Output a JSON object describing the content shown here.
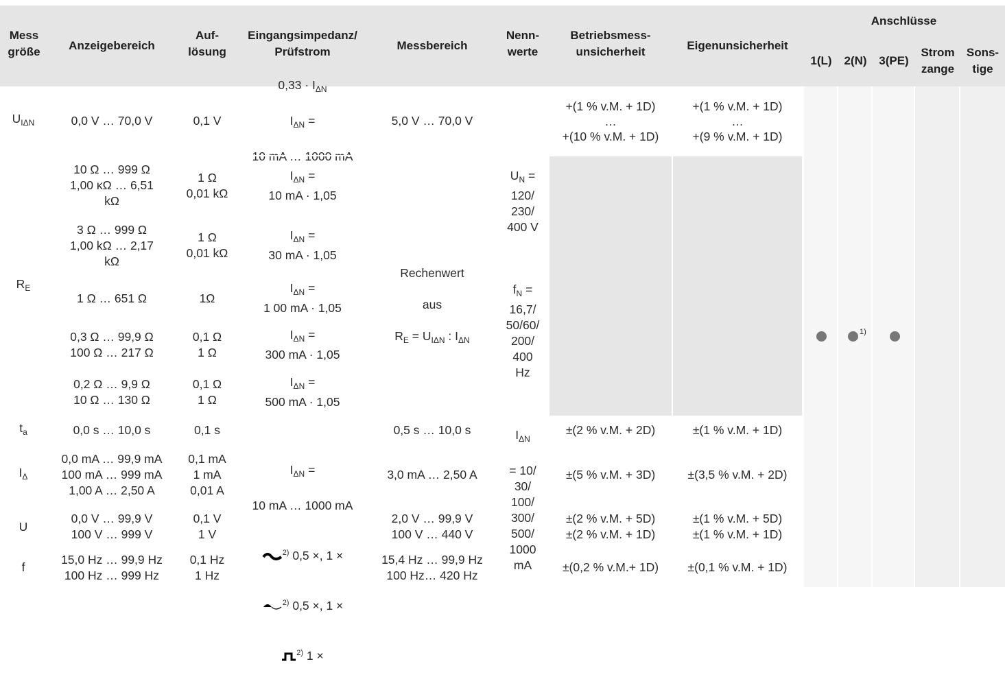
{
  "headers": {
    "messgroesse": "Mess\ngröße",
    "anzeigebereich": "Anzeigebereich",
    "aufloesung": "Auf-\nlösung",
    "eingangsimpedanz": "Eingangsimpedanz/\nPrüfstrom",
    "messbereich": "Messbereich",
    "nennwerte": "Nenn-\nwerte",
    "betriebsmess": "Betriebsmess-\nunsicherheit",
    "eigen": "Eigenunsicherheit",
    "anschluesse": "Anschlüsse",
    "l": "1(L)",
    "n": "2(N)",
    "pe": "3(PE)",
    "strom": "Strom\nzange",
    "sonstige": "Sons-\ntige"
  },
  "sym": {
    "u": "U",
    "i": "I",
    "delta_n": "ΔN",
    "delta": "Δ",
    "r": "R",
    "e": "E",
    "t": "t",
    "a": "a",
    "f": "f",
    "u_plain": "U"
  },
  "rows": {
    "uidn": {
      "anzeige": "0,0 V … 70,0 V",
      "aufl": "0,1 V",
      "imp1": "0,33 · I",
      "imp2": "I",
      "imp2b": " =",
      "imp3": "10 mA … 1000 mA",
      "messbereich": "5,0 V … 70,0 V",
      "betrieb": "+(1 % v.M. + 1D)\n…\n+(10 % v.M. + 1D)",
      "eigen": "+(1 % v.M. + 1D)\n…\n+(9 % v.M. + 1D)"
    },
    "re1": {
      "anzeige": "10 Ω … 999 Ω\n1,00 κΩ … 6,51\nkΩ",
      "aufl": "1 Ω\n0,01 kΩ",
      "imp": "10 mA · 1,05"
    },
    "re2": {
      "anzeige": "3 Ω … 999 Ω\n1,00 kΩ … 2,17\nkΩ",
      "aufl": "1 Ω\n0,01 kΩ",
      "imp": "30 mA · 1,05"
    },
    "re3": {
      "anzeige": "1 Ω … 651 Ω",
      "aufl": "1Ω",
      "imp": "1 00 mA · 1,05"
    },
    "re4": {
      "anzeige": "0,3 Ω … 99,9 Ω\n100 Ω … 217 Ω",
      "aufl": "0,1 Ω\n1 Ω",
      "imp": "300 mA · 1,05"
    },
    "re5": {
      "anzeige": "0,2 Ω … 9,9 Ω\n10 Ω … 130 Ω",
      "aufl": "0,1 Ω\n1 Ω",
      "imp": "500 mA · 1,05"
    },
    "re_mess": {
      "l1": "Rechenwert",
      "l2": "aus",
      "eq_mid": " = U",
      "eq_colon": " : I"
    },
    "ta": {
      "anzeige": "0,0 s … 10,0 s",
      "aufl": "0,1 s",
      "messbereich": "0,5 s … 10,0 s",
      "betrieb": "±(2 % v.M. + 2D)",
      "eigen": "±(1 % v.M. + 1D)"
    },
    "idelta": {
      "anzeige": "0,0 mA … 99,9 mA\n100 mA … 999 mA\n1,00 A … 2,50 A",
      "aufl": "0,1 mA\n1 mA\n0,01 A",
      "messbereich": "3,0 mA … 2,50 A",
      "betrieb": "±(5 % v.M. + 3D)",
      "eigen": "±(3,5 % v.M. + 2D)"
    },
    "u": {
      "anzeige": "0,0 V … 99,9 V\n100 V … 999 V",
      "aufl": "0,1 V\n1 V",
      "messbereich": "2,0 V … 99,9 V\n100 V … 440 V",
      "betrieb": "±(2 % v.M. + 5D)\n±(2 % v.M. + 1D)",
      "eigen": "±(1 % v.M. + 5D)\n±(1 % v.M. + 1D)"
    },
    "f": {
      "anzeige": "15,0 Hz … 99,9 Hz\n100 Hz … 999 Hz",
      "aufl": "0,1 Hz\n1 Hz",
      "messbereich": "15,4 Hz … 99,9 Hz\n100 Hz… 420 Hz",
      "betrieb": "±(0,2 % v.M.+ 1D)",
      "eigen": "±(0,1 % v.M. + 1D)"
    },
    "shared_imp": {
      "l1": " =",
      "l2": "10 mA … 1000 mA",
      "sup": "2)",
      "w1": " 0,5 ×, 1 ×",
      "w2": " 0,5 ×, 1 ×",
      "w3": " 1 ×"
    }
  },
  "nennwerte": {
    "un_val": " =\n120/\n230/\n400 V",
    "fn_val": " =\n16,7/\n50/60/\n200/\n400\nHz",
    "in_val": "= 10/\n30/\n100/\n300/\n500/\n1000\nmA",
    "n_sub": "N"
  },
  "connections": {
    "footnote": "1)"
  }
}
